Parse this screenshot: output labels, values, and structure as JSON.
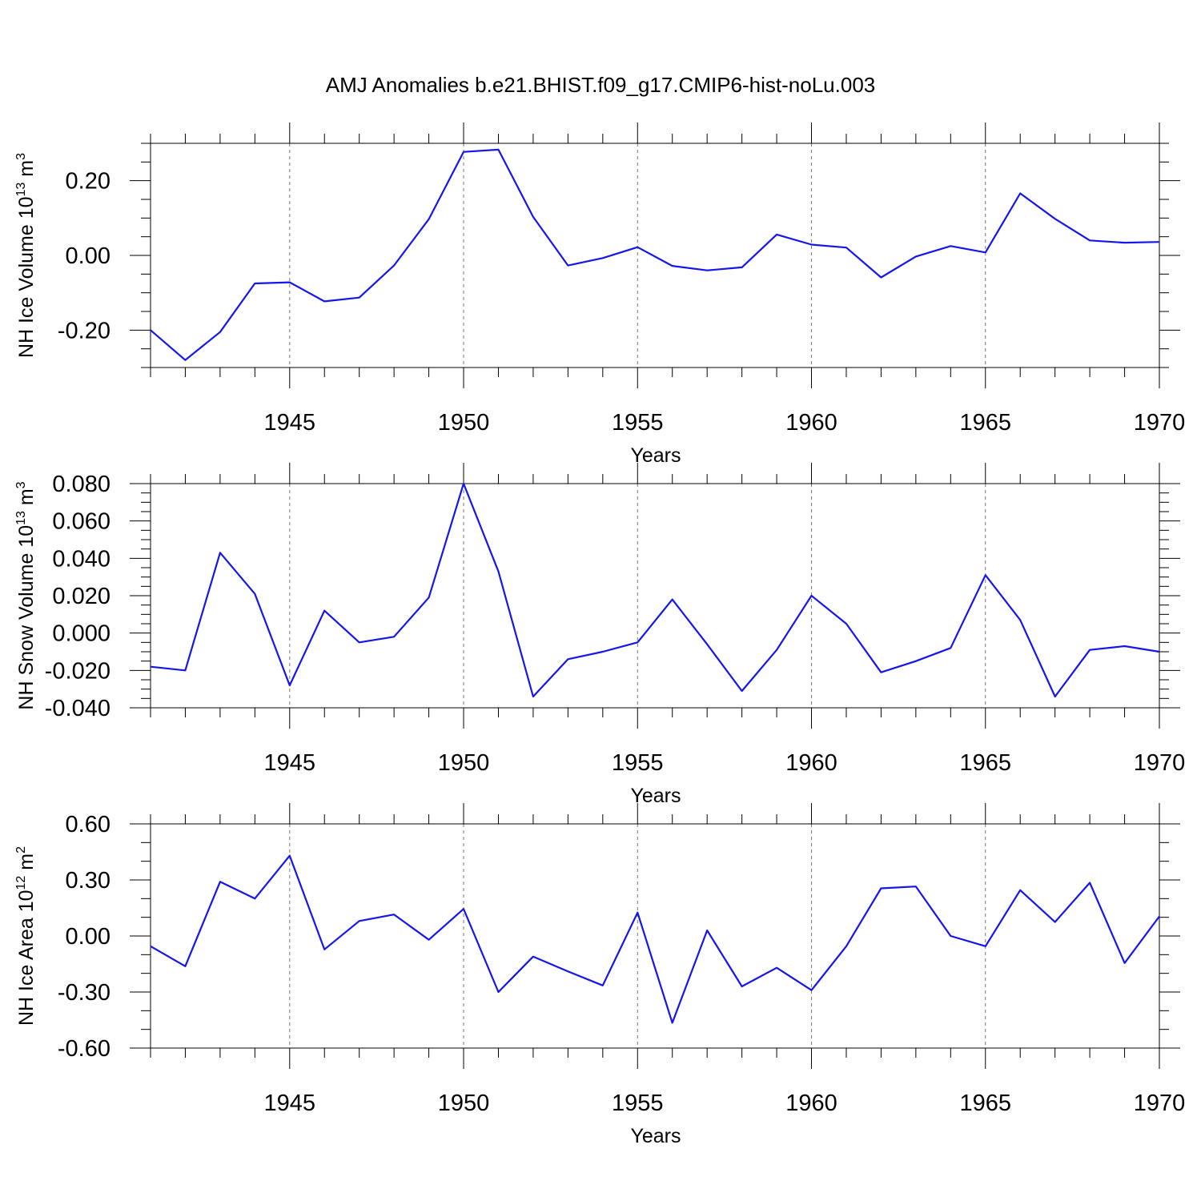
{
  "figure_title": "AMJ Anomalies b.e21.BHIST.f09_g17.CMIP6-hist-noLu.003",
  "line_color": "#1515ee",
  "chart_data": [
    {
      "type": "line",
      "name": "NH Ice Volume",
      "xlabel": "Years",
      "ylabel": {
        "base": "NH Ice Volume 10",
        "exp": "13",
        "unit": " m",
        "unit_exp": "3"
      },
      "xlim": [
        1941,
        1970
      ],
      "ylim": [
        -0.3,
        0.3
      ],
      "xticks": [
        1945,
        1950,
        1955,
        1960,
        1965,
        1970
      ],
      "xtick_labels": [
        "1945",
        "1950",
        "1955",
        "1960",
        "1965",
        "1970"
      ],
      "yticks": [
        -0.2,
        0.0,
        0.2
      ],
      "ytick_labels": [
        "-0.20",
        "0.00",
        "0.20"
      ],
      "y_minor_step": 0.05,
      "x_gridlines": [
        1945,
        1950,
        1955,
        1960,
        1965
      ],
      "x": [
        1941,
        1942,
        1943,
        1944,
        1945,
        1946,
        1947,
        1948,
        1949,
        1950,
        1951,
        1952,
        1953,
        1954,
        1955,
        1956,
        1957,
        1958,
        1959,
        1960,
        1961,
        1962,
        1963,
        1964,
        1965,
        1966,
        1967,
        1968,
        1969,
        1970
      ],
      "y": [
        -0.2,
        -0.28,
        -0.205,
        -0.075,
        -0.072,
        -0.123,
        -0.113,
        -0.027,
        0.097,
        0.277,
        0.283,
        0.103,
        -0.027,
        -0.007,
        0.022,
        -0.028,
        -0.04,
        -0.032,
        0.056,
        0.029,
        0.021,
        -0.059,
        -0.003,
        0.025,
        0.008,
        0.166,
        0.098,
        0.04,
        0.034,
        0.036
      ]
    },
    {
      "type": "line",
      "name": "NH Snow Volume",
      "xlabel": "Years",
      "ylabel": {
        "base": "NH Snow Volume 10",
        "exp": "13",
        "unit": " m",
        "unit_exp": "3"
      },
      "xlim": [
        1941,
        1970
      ],
      "ylim": [
        -0.04,
        0.08
      ],
      "xticks": [
        1945,
        1950,
        1955,
        1960,
        1965,
        1970
      ],
      "xtick_labels": [
        "1945",
        "1950",
        "1955",
        "1960",
        "1965",
        "1970"
      ],
      "yticks": [
        -0.04,
        -0.02,
        0.0,
        0.02,
        0.04,
        0.06,
        0.08
      ],
      "ytick_labels": [
        "-0.040",
        "-0.020",
        "0.000",
        "0.020",
        "0.040",
        "0.060",
        "0.080"
      ],
      "y_minor_step": 0.005,
      "x_gridlines": [
        1945,
        1950,
        1955,
        1960,
        1965
      ],
      "x": [
        1941,
        1942,
        1943,
        1944,
        1945,
        1946,
        1947,
        1948,
        1949,
        1950,
        1951,
        1952,
        1953,
        1954,
        1955,
        1956,
        1957,
        1958,
        1959,
        1960,
        1961,
        1962,
        1963,
        1964,
        1965,
        1966,
        1967,
        1968,
        1969,
        1970
      ],
      "y": [
        -0.018,
        -0.02,
        0.043,
        0.021,
        -0.028,
        0.012,
        -0.005,
        -0.002,
        0.019,
        0.08,
        0.033,
        -0.034,
        -0.014,
        -0.01,
        -0.005,
        0.018,
        -0.006,
        -0.031,
        -0.009,
        0.02,
        0.005,
        -0.021,
        -0.015,
        -0.008,
        0.031,
        0.007,
        -0.034,
        -0.009,
        -0.007,
        -0.01
      ]
    },
    {
      "type": "line",
      "name": "NH Ice Area",
      "xlabel": "Years",
      "ylabel": {
        "base": "NH Ice Area 10",
        "exp": "12",
        "unit": " m",
        "unit_exp": "2"
      },
      "xlim": [
        1941,
        1970
      ],
      "ylim": [
        -0.6,
        0.6
      ],
      "xticks": [
        1945,
        1950,
        1955,
        1960,
        1965,
        1970
      ],
      "xtick_labels": [
        "1945",
        "1950",
        "1955",
        "1960",
        "1965",
        "1970"
      ],
      "yticks": [
        -0.6,
        -0.3,
        0.0,
        0.3,
        0.6
      ],
      "ytick_labels": [
        "-0.60",
        "-0.30",
        "0.00",
        "0.30",
        "0.60"
      ],
      "y_minor_step": 0.1,
      "x_gridlines": [
        1945,
        1950,
        1955,
        1960,
        1965
      ],
      "x": [
        1941,
        1942,
        1943,
        1944,
        1945,
        1946,
        1947,
        1948,
        1949,
        1950,
        1951,
        1952,
        1953,
        1954,
        1955,
        1956,
        1957,
        1958,
        1959,
        1960,
        1961,
        1962,
        1963,
        1964,
        1965,
        1966,
        1967,
        1968,
        1969,
        1970
      ],
      "y": [
        -0.055,
        -0.162,
        0.29,
        0.2,
        0.43,
        -0.072,
        0.08,
        0.115,
        -0.02,
        0.145,
        -0.3,
        -0.11,
        -0.19,
        -0.265,
        0.125,
        -0.465,
        0.03,
        -0.27,
        -0.17,
        -0.29,
        -0.055,
        0.255,
        0.265,
        0.0,
        -0.055,
        0.245,
        0.075,
        0.285,
        -0.145,
        0.105
      ]
    }
  ]
}
